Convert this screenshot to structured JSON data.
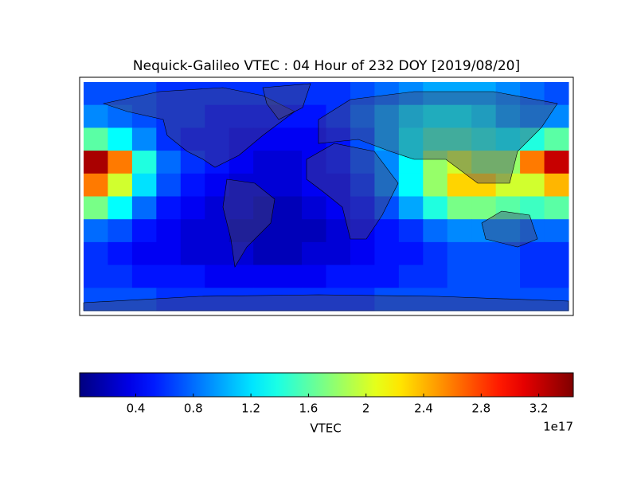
{
  "chart_data": {
    "type": "heatmap",
    "title": "Nequick-Galileo VTEC : 04 Hour of 232 DOY [2019/08/20]",
    "colormap": "jet",
    "z": [
      [
        0.7,
        0.7,
        0.7,
        0.6,
        0.6,
        0.6,
        0.6,
        0.6,
        0.6,
        0.6,
        0.6,
        0.7,
        0.8,
        0.9,
        1.0,
        1.0,
        1.0,
        0.9,
        0.8,
        0.7
      ],
      [
        0.9,
        0.8,
        0.7,
        0.6,
        0.6,
        0.5,
        0.5,
        0.5,
        0.5,
        0.5,
        0.6,
        0.8,
        1.0,
        1.2,
        1.3,
        1.3,
        1.2,
        1.0,
        0.9,
        0.9
      ],
      [
        1.6,
        1.3,
        0.9,
        0.6,
        0.5,
        0.5,
        0.4,
        0.4,
        0.4,
        0.4,
        0.5,
        0.7,
        1.0,
        1.3,
        1.5,
        1.5,
        1.4,
        1.3,
        1.4,
        1.6
      ],
      [
        3.3,
        2.6,
        1.4,
        0.8,
        0.6,
        0.5,
        0.4,
        0.3,
        0.3,
        0.4,
        0.5,
        0.7,
        0.9,
        1.3,
        1.8,
        2.0,
        1.8,
        1.8,
        2.6,
        3.2
      ],
      [
        2.6,
        2.0,
        1.2,
        0.7,
        0.5,
        0.4,
        0.3,
        0.3,
        0.3,
        0.4,
        0.4,
        0.6,
        0.9,
        1.3,
        1.8,
        2.3,
        2.3,
        2.0,
        2.0,
        2.4
      ],
      [
        1.7,
        1.3,
        0.8,
        0.5,
        0.4,
        0.3,
        0.3,
        0.2,
        0.2,
        0.3,
        0.4,
        0.5,
        0.7,
        1.0,
        1.4,
        1.7,
        1.7,
        1.6,
        1.5,
        1.6
      ],
      [
        0.8,
        0.7,
        0.5,
        0.4,
        0.3,
        0.3,
        0.2,
        0.2,
        0.2,
        0.2,
        0.3,
        0.4,
        0.5,
        0.6,
        0.8,
        0.9,
        0.9,
        0.9,
        0.8,
        0.8
      ],
      [
        0.6,
        0.5,
        0.4,
        0.4,
        0.3,
        0.3,
        0.3,
        0.2,
        0.2,
        0.3,
        0.3,
        0.4,
        0.5,
        0.5,
        0.6,
        0.7,
        0.7,
        0.7,
        0.6,
        0.6
      ],
      [
        0.6,
        0.6,
        0.5,
        0.5,
        0.5,
        0.4,
        0.4,
        0.4,
        0.4,
        0.4,
        0.5,
        0.5,
        0.5,
        0.6,
        0.6,
        0.7,
        0.7,
        0.7,
        0.6,
        0.6
      ],
      [
        0.7,
        0.7,
        0.7,
        0.6,
        0.6,
        0.6,
        0.6,
        0.6,
        0.6,
        0.6,
        0.6,
        0.6,
        0.7,
        0.7,
        0.7,
        0.7,
        0.7,
        0.7,
        0.7,
        0.7
      ]
    ],
    "clim": [
      0.01,
      3.44
    ],
    "cticks": [
      0.4,
      0.8,
      1.2,
      1.6,
      2.0,
      2.4,
      2.8,
      3.2
    ],
    "colorbar_label": "VTEC",
    "colorbar_offset": "1e17"
  }
}
